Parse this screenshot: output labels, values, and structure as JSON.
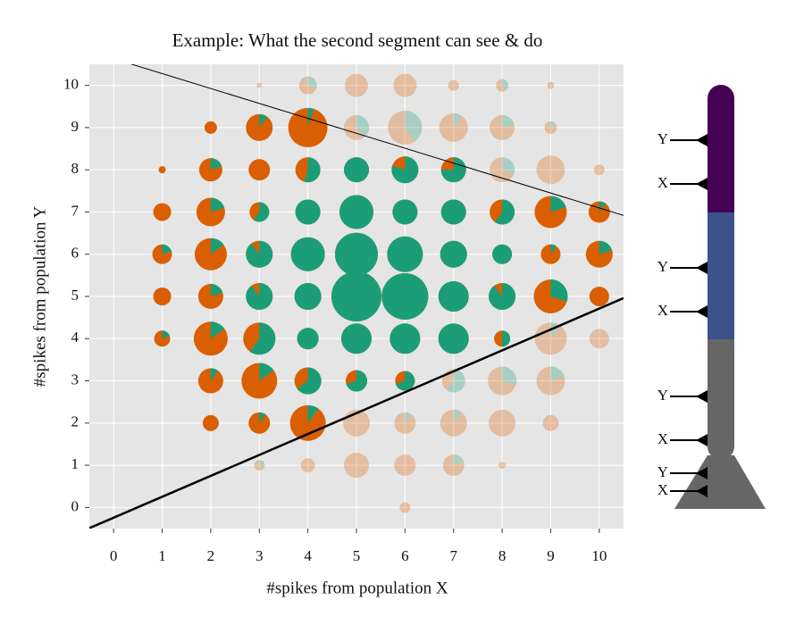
{
  "chart_data": {
    "type": "pie-scatter",
    "title": "Example: What the second segment can see & do",
    "xlabel": "#spikes from population X",
    "ylabel": "#spikes from population Y",
    "xlim": [
      -0.5,
      10.5
    ],
    "ylim": [
      -0.5,
      10.5
    ],
    "xticks": [
      0,
      1,
      2,
      3,
      4,
      5,
      6,
      7,
      8,
      9,
      10
    ],
    "yticks": [
      0,
      1,
      2,
      3,
      4,
      5,
      6,
      7,
      8,
      9,
      10
    ],
    "grid": true,
    "base_color": "#d95f02",
    "share_color": "#1b9e77",
    "x": [
      3,
      4,
      5,
      6,
      7,
      8,
      9,
      2,
      3,
      4,
      5,
      6,
      7,
      8,
      9,
      1,
      2,
      3,
      4,
      5,
      6,
      7,
      8,
      9,
      10,
      1,
      2,
      3,
      4,
      5,
      6,
      7,
      8,
      9,
      10,
      1,
      2,
      3,
      4,
      5,
      6,
      7,
      8,
      9,
      10,
      1,
      2,
      3,
      4,
      5,
      6,
      7,
      8,
      9,
      10,
      1,
      2,
      3,
      4,
      5,
      6,
      7,
      8,
      9,
      10,
      2,
      3,
      4,
      5,
      6,
      7,
      8,
      9,
      2,
      3,
      4,
      5,
      6,
      7,
      8,
      9,
      3,
      4,
      5,
      6,
      7,
      8,
      6
    ],
    "y": [
      10,
      10,
      10,
      10,
      10,
      10,
      10,
      9,
      9,
      9,
      9,
      9,
      9,
      9,
      9,
      8,
      8,
      8,
      8,
      8,
      8,
      8,
      8,
      8,
      8,
      7,
      7,
      7,
      7,
      7,
      7,
      7,
      7,
      7,
      7,
      6,
      6,
      6,
      6,
      6,
      6,
      6,
      6,
      6,
      6,
      5,
      5,
      5,
      5,
      5,
      5,
      5,
      5,
      5,
      5,
      4,
      4,
      4,
      4,
      4,
      4,
      4,
      4,
      4,
      4,
      3,
      3,
      3,
      3,
      3,
      3,
      3,
      3,
      2,
      2,
      2,
      2,
      2,
      2,
      2,
      2,
      1,
      1,
      1,
      1,
      1,
      1,
      0
    ],
    "sizes": [
      9,
      100,
      169,
      169,
      36,
      49,
      16,
      49,
      225,
      484,
      196,
      361,
      256,
      196,
      49,
      16,
      169,
      144,
      196,
      196,
      225,
      196,
      196,
      256,
      36,
      100,
      256,
      121,
      196,
      361,
      196,
      196,
      196,
      324,
      144,
      121,
      324,
      225,
      361,
      576,
      400,
      225,
      121,
      121,
      225,
      100,
      196,
      225,
      225,
      784,
      676,
      289,
      225,
      361,
      121,
      81,
      361,
      324,
      144,
      289,
      289,
      289,
      81,
      324,
      121,
      196,
      400,
      225,
      144,
      121,
      169,
      256,
      256,
      81,
      144,
      400,
      225,
      144,
      225,
      225,
      81,
      36,
      64,
      196,
      144,
      144,
      16,
      36
    ],
    "green_share": [
      0,
      0.3,
      0,
      0,
      0,
      0.4,
      0,
      0,
      0.1,
      0.05,
      0.4,
      0.4,
      0.1,
      0.2,
      0.2,
      0,
      0.2,
      0,
      0.55,
      1,
      0.8,
      0.75,
      0.3,
      0,
      0,
      0,
      0.2,
      0.6,
      1,
      1,
      1,
      1,
      0.6,
      0.2,
      0.1,
      0.2,
      0.15,
      0.9,
      1,
      1,
      1,
      1,
      1,
      0.1,
      0.2,
      0,
      0.2,
      0.9,
      1,
      1,
      1,
      1,
      0.9,
      0.3,
      0,
      0.2,
      0.15,
      0.6,
      1,
      1,
      1,
      1,
      0.5,
      0.1,
      0,
      0.1,
      0.15,
      0.65,
      0.7,
      0.7,
      0.6,
      0.3,
      0.2,
      0,
      0.1,
      0.1,
      0,
      0.1,
      0.1,
      0,
      0,
      0.3,
      0,
      0,
      0,
      0.2,
      0,
      0
    ],
    "lines": [
      {
        "x": [
          -0.5,
          10.5
        ],
        "y": [
          10.81,
          6.92
        ],
        "linewidth": 1
      },
      {
        "x": [
          -0.5,
          10.5
        ],
        "y": [
          -0.49,
          4.96
        ],
        "linewidth": 2.5
      }
    ]
  },
  "neuron": {
    "input_labels": [
      "Y",
      "X",
      "Y",
      "X",
      "Y",
      "X",
      "Y",
      "X"
    ]
  }
}
